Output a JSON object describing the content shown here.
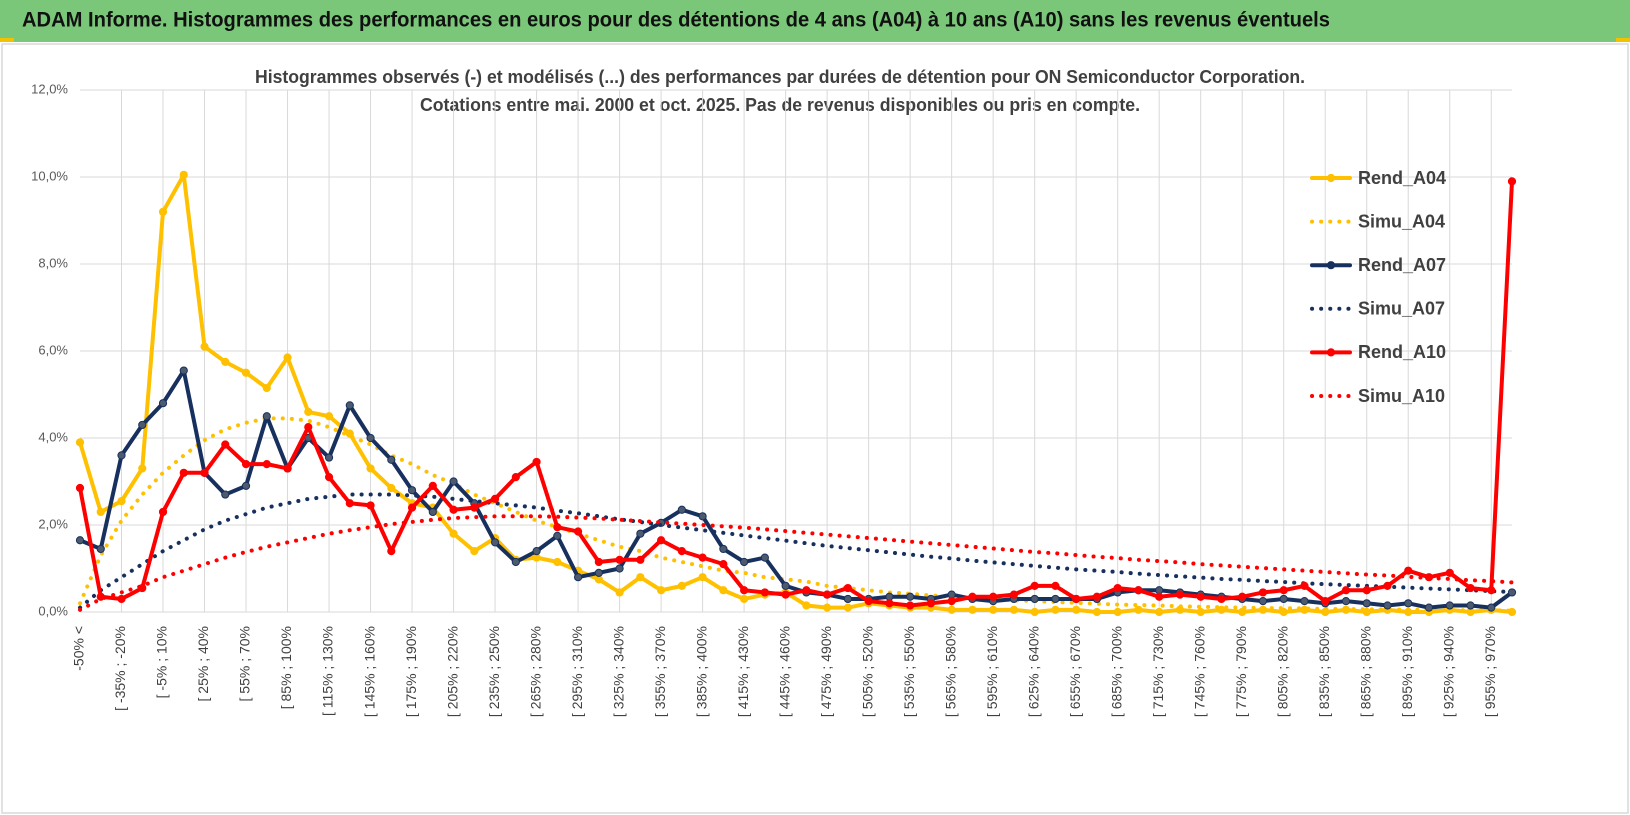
{
  "chart_data": {
    "type": "line",
    "title": "ADAM Informe. Histogrammes des performances en euros pour des détentions de 4 ans (A04) à 10 ans (A10) sans les revenus éventuels",
    "subtitle": [
      "Histogrammes observés (-) et modélisés (...) des performances par durées de détention pour ON Semiconductor Corporation.",
      "Cotations entre mai. 2000 et oct. 2025. Pas de revenus disponibles ou pris en compte."
    ],
    "categories": [
      "-50% <",
      null,
      "[ -35% ; -20%",
      null,
      "[ -5% ; 10%",
      null,
      "[ 25% ; 40%",
      null,
      "[ 55% ; 70%",
      null,
      "[ 85% ; 100%",
      null,
      "[ 115% ; 130%",
      null,
      "[ 145% ; 160%",
      null,
      "[ 175% ; 190%",
      null,
      "[ 205% ; 220%",
      null,
      "[ 235% ; 250%",
      null,
      "[ 265% ; 280%",
      null,
      "[ 295% ; 310%",
      null,
      "[ 325% ; 340%",
      null,
      "[ 355% ; 370%",
      null,
      "[ 385% ; 400%",
      null,
      "[ 415% ; 430%",
      null,
      "[ 445% ; 460%",
      null,
      "[ 475% ; 490%",
      null,
      "[ 505% ; 520%",
      null,
      "[ 535% ; 550%",
      null,
      "[ 565% ; 580%",
      null,
      "[ 595% ; 610%",
      null,
      "[ 625% ; 640%",
      null,
      "[ 655% ; 670%",
      null,
      "[ 685% ; 700%",
      null,
      "[ 715% ; 730%",
      null,
      "[ 745% ; 760%",
      null,
      "[ 775% ; 790%",
      null,
      "[ 805% ; 820%",
      null,
      "[ 835% ; 850%",
      null,
      "[ 865% ; 880%",
      null,
      "[ 895% ; 910%",
      null,
      "[ 925% ; 940%",
      null,
      "[ 955% ; 970%",
      null
    ],
    "ylim": [
      0,
      12
    ],
    "yticks": [
      {
        "value": 0,
        "label": "0,0%"
      },
      {
        "value": 2,
        "label": "2,0%"
      },
      {
        "value": 4,
        "label": "4,0%"
      },
      {
        "value": 6,
        "label": "6,0%"
      },
      {
        "value": 8,
        "label": "8,0%"
      },
      {
        "value": 10,
        "label": "10,0%"
      },
      {
        "value": 12,
        "label": "12,0%"
      }
    ],
    "grid": true,
    "legend": "right",
    "series": [
      {
        "name": "Rend_A04",
        "color": "#ffc000",
        "style": "solid",
        "markers": true,
        "values": [
          3.9,
          2.3,
          2.55,
          3.3,
          9.2,
          10.05,
          6.1,
          5.75,
          5.5,
          5.15,
          5.85,
          4.6,
          4.5,
          4.1,
          3.3,
          2.85,
          2.5,
          2.4,
          1.8,
          1.4,
          1.7,
          1.2,
          1.25,
          1.15,
          0.95,
          0.75,
          0.45,
          0.8,
          0.5,
          0.6,
          0.8,
          0.5,
          0.3,
          0.4,
          0.45,
          0.15,
          0.1,
          0.1,
          0.2,
          0.15,
          0.1,
          0.1,
          0.05,
          0.05,
          0.05,
          0.05,
          0.0,
          0.05,
          0.05,
          0.0,
          0.0,
          0.05,
          0.0,
          0.05,
          0.0,
          0.05,
          0.0,
          0.05,
          0.0,
          0.05,
          0.0,
          0.05,
          0.0,
          0.05,
          0.0,
          0.0,
          0.05,
          0.0,
          0.05,
          0.0
        ]
      },
      {
        "name": "Simu_A04",
        "color": "#ffc000",
        "style": "dotted",
        "markers": false,
        "values": [
          0.2,
          1.3,
          2.1,
          2.7,
          3.2,
          3.6,
          3.95,
          4.2,
          4.35,
          4.45,
          4.45,
          4.4,
          4.25,
          4.05,
          3.85,
          3.6,
          3.4,
          3.15,
          2.95,
          2.7,
          2.5,
          2.3,
          2.1,
          1.95,
          1.8,
          1.65,
          1.5,
          1.4,
          1.25,
          1.15,
          1.05,
          0.95,
          0.9,
          0.8,
          0.75,
          0.7,
          0.6,
          0.55,
          0.5,
          0.45,
          0.42,
          0.38,
          0.35,
          0.32,
          0.3,
          0.27,
          0.25,
          0.23,
          0.21,
          0.19,
          0.17,
          0.16,
          0.15,
          0.13,
          0.12,
          0.11,
          0.1,
          0.09,
          0.09,
          0.08,
          0.07,
          0.07,
          0.06,
          0.06,
          0.05,
          0.05,
          0.04,
          0.04,
          0.04,
          0.03
        ]
      },
      {
        "name": "Rend_A07",
        "color": "#17305e",
        "style": "solid",
        "markers": true,
        "values": [
          1.65,
          1.45,
          3.6,
          4.3,
          4.8,
          5.55,
          3.2,
          2.7,
          2.9,
          4.5,
          3.3,
          4.0,
          3.55,
          4.75,
          4.0,
          3.5,
          2.8,
          2.3,
          3.0,
          2.5,
          1.6,
          1.15,
          1.4,
          1.75,
          0.8,
          0.9,
          1.0,
          1.8,
          2.05,
          2.35,
          2.2,
          1.45,
          1.15,
          1.25,
          0.6,
          0.45,
          0.4,
          0.3,
          0.3,
          0.35,
          0.35,
          0.3,
          0.4,
          0.3,
          0.25,
          0.3,
          0.3,
          0.3,
          0.3,
          0.3,
          0.45,
          0.5,
          0.5,
          0.45,
          0.4,
          0.35,
          0.3,
          0.25,
          0.3,
          0.25,
          0.2,
          0.25,
          0.2,
          0.15,
          0.2,
          0.1,
          0.15,
          0.15,
          0.1,
          0.45
        ]
      },
      {
        "name": "Simu_A07",
        "color": "#17305e",
        "style": "dotted",
        "markers": false,
        "values": [
          0.1,
          0.5,
          0.8,
          1.1,
          1.4,
          1.65,
          1.9,
          2.1,
          2.25,
          2.4,
          2.5,
          2.6,
          2.65,
          2.7,
          2.7,
          2.7,
          2.68,
          2.65,
          2.6,
          2.55,
          2.5,
          2.45,
          2.4,
          2.33,
          2.27,
          2.2,
          2.13,
          2.07,
          2.0,
          1.94,
          1.88,
          1.82,
          1.76,
          1.7,
          1.64,
          1.58,
          1.52,
          1.47,
          1.42,
          1.37,
          1.32,
          1.27,
          1.23,
          1.18,
          1.14,
          1.1,
          1.06,
          1.02,
          0.98,
          0.95,
          0.92,
          0.88,
          0.85,
          0.82,
          0.79,
          0.76,
          0.74,
          0.71,
          0.69,
          0.66,
          0.64,
          0.62,
          0.6,
          0.58,
          0.56,
          0.54,
          0.52,
          0.5,
          0.48,
          0.46
        ]
      },
      {
        "name": "Rend_A10",
        "color": "#ff0000",
        "style": "solid",
        "markers": true,
        "values": [
          2.85,
          0.35,
          0.3,
          0.55,
          2.3,
          3.2,
          3.2,
          3.85,
          3.4,
          3.4,
          3.3,
          4.25,
          3.1,
          2.5,
          2.45,
          1.4,
          2.4,
          2.9,
          2.35,
          2.4,
          2.6,
          3.1,
          3.45,
          1.95,
          1.85,
          1.15,
          1.2,
          1.2,
          1.65,
          1.4,
          1.25,
          1.1,
          0.5,
          0.45,
          0.4,
          0.5,
          0.4,
          0.55,
          0.25,
          0.2,
          0.15,
          0.2,
          0.25,
          0.35,
          0.35,
          0.4,
          0.6,
          0.6,
          0.3,
          0.35,
          0.55,
          0.5,
          0.35,
          0.4,
          0.35,
          0.3,
          0.35,
          0.45,
          0.5,
          0.6,
          0.25,
          0.5,
          0.5,
          0.6,
          0.95,
          0.8,
          0.9,
          0.55,
          0.5,
          9.9
        ]
      },
      {
        "name": "Simu_A10",
        "color": "#ff0000",
        "style": "dotted",
        "markers": false,
        "values": [
          0.05,
          0.3,
          0.45,
          0.6,
          0.8,
          0.95,
          1.1,
          1.25,
          1.38,
          1.5,
          1.6,
          1.7,
          1.8,
          1.88,
          1.95,
          2.02,
          2.07,
          2.12,
          2.16,
          2.18,
          2.2,
          2.2,
          2.2,
          2.19,
          2.17,
          2.15,
          2.12,
          2.09,
          2.06,
          2.03,
          2.0,
          1.97,
          1.94,
          1.9,
          1.86,
          1.82,
          1.78,
          1.74,
          1.7,
          1.66,
          1.62,
          1.58,
          1.54,
          1.5,
          1.46,
          1.42,
          1.38,
          1.35,
          1.31,
          1.27,
          1.24,
          1.2,
          1.17,
          1.14,
          1.1,
          1.07,
          1.04,
          1.01,
          0.98,
          0.95,
          0.92,
          0.89,
          0.86,
          0.84,
          0.81,
          0.78,
          0.76,
          0.73,
          0.71,
          0.68
        ]
      }
    ]
  }
}
